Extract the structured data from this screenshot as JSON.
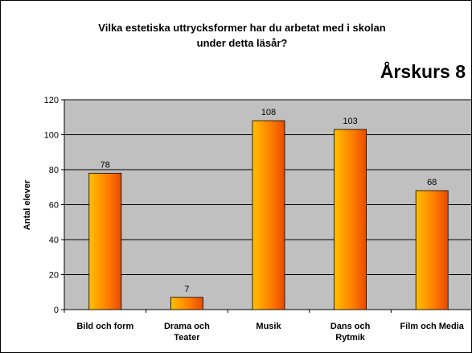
{
  "chart_data": {
    "type": "bar",
    "title": [
      "Vilka estetiska uttrycksformer har du arbetat med i skolan",
      "under detta läsår?"
    ],
    "subtitle": "Årskurs 8",
    "y_label": "Antal elever",
    "categories": [
      "Bild och form",
      "Drama och Teater",
      "Musik",
      "Dans och Rytmik",
      "Film och Media"
    ],
    "values": [
      78,
      7,
      108,
      103,
      68
    ],
    "ylim": [
      0,
      120
    ],
    "yticks": [
      0,
      20,
      40,
      60,
      80,
      100,
      120
    ],
    "grid": true,
    "color": "#ff8c00",
    "plot_background": "#c0c0c0"
  }
}
